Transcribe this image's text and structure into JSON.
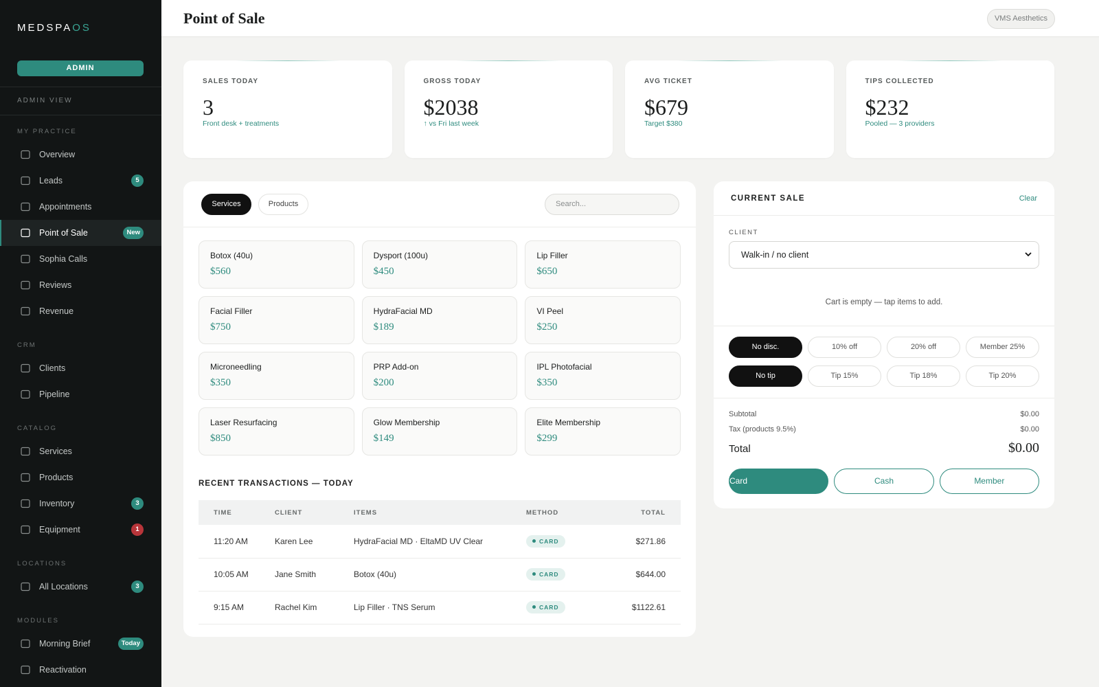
{
  "sidebar": {
    "logo_main": "MEDSPA",
    "logo_accent": "OS",
    "role_button": "ADMIN",
    "view_label": "ADMIN VIEW",
    "sections": [
      {
        "title": "MY PRACTICE",
        "items": [
          {
            "label": "Overview"
          },
          {
            "label": "Leads",
            "badge": "5"
          },
          {
            "label": "Appointments"
          },
          {
            "label": "Point of Sale",
            "badge": "New",
            "active": true
          },
          {
            "label": "Sophia Calls"
          },
          {
            "label": "Reviews"
          },
          {
            "label": "Revenue"
          }
        ]
      },
      {
        "title": "CRM",
        "items": [
          {
            "label": "Clients"
          },
          {
            "label": "Pipeline"
          }
        ]
      },
      {
        "title": "CATALOG",
        "items": [
          {
            "label": "Services"
          },
          {
            "label": "Products"
          },
          {
            "label": "Inventory",
            "badge": "3"
          },
          {
            "label": "Equipment",
            "badge": "1",
            "badge_color": "#b8353a"
          }
        ]
      },
      {
        "title": "LOCATIONS",
        "items": [
          {
            "label": "All Locations",
            "badge": "3"
          }
        ]
      },
      {
        "title": "MODULES",
        "items": [
          {
            "label": "Morning Brief",
            "badge": "Today"
          },
          {
            "label": "Reactivation"
          }
        ]
      }
    ]
  },
  "header": {
    "title": "Point of Sale",
    "location": "VMS Aesthetics"
  },
  "stats": [
    {
      "label": "SALES TODAY",
      "value": "3",
      "note": "Front desk + treatments"
    },
    {
      "label": "GROSS TODAY",
      "value": "$2038",
      "note": "↑ vs Fri last week"
    },
    {
      "label": "AVG TICKET",
      "value": "$679",
      "note": "Target $380"
    },
    {
      "label": "TIPS COLLECTED",
      "value": "$232",
      "note": "Pooled — 3 providers"
    }
  ],
  "catalog": {
    "tabs": [
      "Services",
      "Products"
    ],
    "search_placeholder": "Search...",
    "items": [
      {
        "name": "Botox (40u)",
        "price": "$560"
      },
      {
        "name": "Dysport (100u)",
        "price": "$450"
      },
      {
        "name": "Lip Filler",
        "price": "$650"
      },
      {
        "name": "Facial Filler",
        "price": "$750"
      },
      {
        "name": "HydraFacial MD",
        "price": "$189"
      },
      {
        "name": "VI Peel",
        "price": "$250"
      },
      {
        "name": "Microneedling",
        "price": "$350"
      },
      {
        "name": "PRP Add-on",
        "price": "$200"
      },
      {
        "name": "IPL Photofacial",
        "price": "$350"
      },
      {
        "name": "Laser Resurfacing",
        "price": "$850"
      },
      {
        "name": "Glow Membership",
        "price": "$149"
      },
      {
        "name": "Elite Membership",
        "price": "$299"
      }
    ]
  },
  "transactions": {
    "title": "RECENT TRANSACTIONS — TODAY",
    "columns": [
      "TIME",
      "CLIENT",
      "ITEMS",
      "METHOD",
      "TOTAL"
    ],
    "rows": [
      [
        "11:20 AM",
        "Karen Lee",
        "HydraFacial MD · EltaMD UV Clear",
        "CARD",
        "$271.86"
      ],
      [
        "10:05 AM",
        "Jane Smith",
        "Botox (40u)",
        "CARD",
        "$644.00"
      ],
      [
        "9:15 AM",
        "Rachel Kim",
        "Lip Filler · TNS Serum",
        "CARD",
        "$1122.61"
      ]
    ]
  },
  "current_sale": {
    "title": "CURRENT SALE",
    "clear": "Clear",
    "client_label": "CLIENT",
    "client_option": "Walk-in / no client",
    "empty_message": "Cart is empty — tap items to add.",
    "discounts": [
      "No disc.",
      "10% off",
      "20% off",
      "Member 25%"
    ],
    "tips": [
      "No tip",
      "Tip 15%",
      "Tip 18%",
      "Tip 20%"
    ],
    "summary": [
      [
        "Subtotal",
        "$0.00"
      ],
      [
        "Tax (products 9.5%)",
        "$0.00"
      ]
    ],
    "total_label": "Total",
    "total_value": "$0.00",
    "payments": [
      "Card",
      "Cash",
      "Member"
    ]
  }
}
